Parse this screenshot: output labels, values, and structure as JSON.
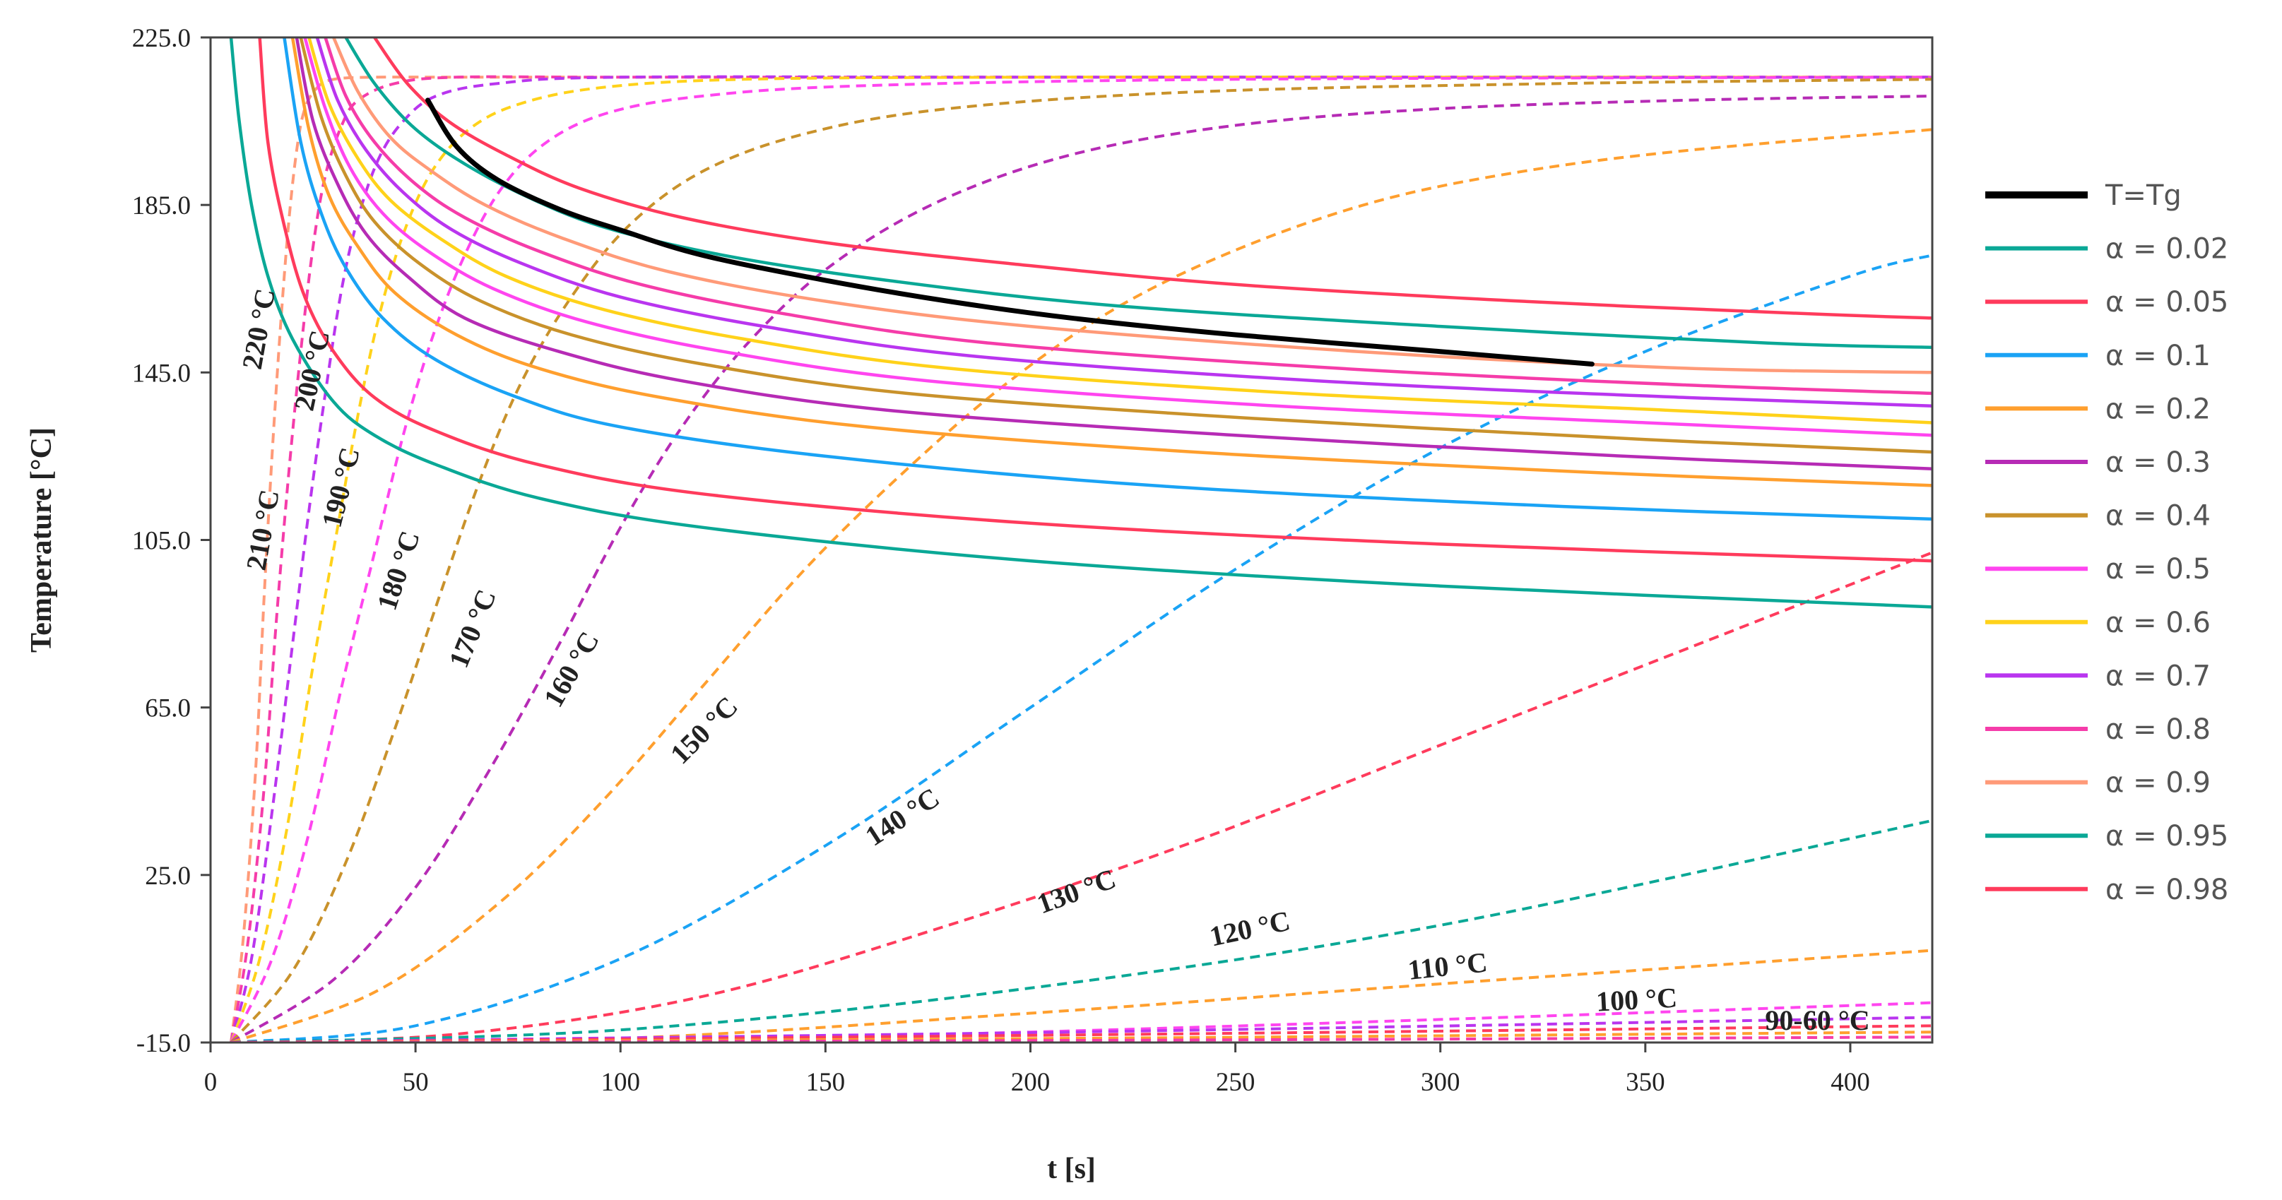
{
  "chart_data": {
    "type": "line",
    "title": "",
    "xlabel": "t [s]",
    "ylabel": "Temperature [°C]",
    "xlim": [
      0,
      420
    ],
    "ylim": [
      -15,
      225
    ],
    "xticks": [
      "0",
      "50",
      "100",
      "150",
      "200",
      "250",
      "300",
      "350",
      "400"
    ],
    "yticks": [
      "-15.0",
      "25.0",
      "65.0",
      "105.0",
      "145.0",
      "185.0",
      "225.0"
    ],
    "grid": false,
    "legend_position": "right",
    "legend": [
      {
        "label": "T=Tg",
        "color": "#000000"
      },
      {
        "label": "α = 0.02",
        "color": "#0aa896"
      },
      {
        "label": "α = 0.05",
        "color": "#ff3b5c"
      },
      {
        "label": "α = 0.1",
        "color": "#1aa3f5"
      },
      {
        "label": "α = 0.2",
        "color": "#ff9f2e"
      },
      {
        "label": "α = 0.3",
        "color": "#b62bb5"
      },
      {
        "label": "α = 0.4",
        "color": "#c9922b"
      },
      {
        "label": "α = 0.5",
        "color": "#ff45ef"
      },
      {
        "label": "α = 0.6",
        "color": "#ffd21a"
      },
      {
        "label": "α = 0.7",
        "color": "#b935ef"
      },
      {
        "label": "α = 0.8",
        "color": "#f53ca9"
      },
      {
        "label": "α = 0.9",
        "color": "#ff9a78"
      },
      {
        "label": "α = 0.95",
        "color": "#0aa896"
      },
      {
        "label": "α = 0.98",
        "color": "#ff3b5c"
      }
    ],
    "tg_curve": {
      "name": "T=Tg",
      "x": [
        53,
        60,
        70,
        85,
        100,
        120,
        150,
        180,
        210,
        250,
        300,
        337
      ],
      "y": [
        210,
        199,
        191,
        184,
        179,
        173,
        167,
        162,
        158,
        154,
        150,
        147
      ]
    },
    "alpha_series": [
      {
        "name": "α = 0.02",
        "x": [
          5,
          7,
          10,
          14,
          20,
          30,
          40,
          55,
          80,
          120,
          200,
          300,
          420
        ],
        "y": [
          225,
          205,
          185,
          168,
          153,
          138,
          130,
          123,
          115,
          108,
          100,
          94,
          89
        ]
      },
      {
        "name": "α = 0.05",
        "x": [
          12,
          14,
          18,
          23,
          30,
          40,
          55,
          80,
          120,
          200,
          300,
          420
        ],
        "y": [
          225,
          200,
          180,
          163,
          150,
          139,
          131,
          123,
          116,
          109,
          104,
          100
        ]
      },
      {
        "name": "α = 0.1",
        "x": [
          18,
          22,
          27,
          33,
          42,
          55,
          75,
          100,
          150,
          230,
          330,
          420
        ],
        "y": [
          225,
          200,
          183,
          170,
          158,
          148,
          139,
          132,
          125,
          118,
          113,
          110
        ]
      },
      {
        "name": "α = 0.2",
        "x": [
          20,
          24,
          29,
          36,
          45,
          60,
          80,
          110,
          160,
          240,
          340,
          420
        ],
        "y": [
          225,
          203,
          187,
          175,
          164,
          154,
          146,
          139,
          132,
          126,
          121,
          118
        ]
      },
      {
        "name": "α = 0.3",
        "x": [
          21,
          25,
          31,
          38,
          48,
          62,
          85,
          115,
          165,
          250,
          345,
          420
        ],
        "y": [
          225,
          205,
          190,
          178,
          168,
          158,
          150,
          143,
          136,
          130,
          125,
          122
        ]
      },
      {
        "name": "α = 0.4",
        "x": [
          22,
          27,
          33,
          40,
          51,
          66,
          88,
          120,
          170,
          255,
          350,
          420
        ],
        "y": [
          225,
          206,
          192,
          181,
          171,
          162,
          154,
          147,
          140,
          134,
          129,
          126
        ]
      },
      {
        "name": "α = 0.5",
        "x": [
          23,
          28,
          34,
          42,
          53,
          69,
          92,
          125,
          175,
          260,
          350,
          420
        ],
        "y": [
          225,
          208,
          194,
          183,
          174,
          165,
          157,
          150,
          143,
          137,
          133,
          130
        ]
      },
      {
        "name": "α = 0.6",
        "x": [
          24,
          29,
          36,
          44,
          56,
          72,
          96,
          130,
          180,
          265,
          355,
          420
        ],
        "y": [
          225,
          209,
          196,
          186,
          177,
          168,
          160,
          153,
          146,
          140,
          136,
          133
        ]
      },
      {
        "name": "α = 0.7",
        "x": [
          26,
          31,
          38,
          47,
          59,
          76,
          100,
          135,
          185,
          270,
          360,
          420
        ],
        "y": [
          225,
          210,
          198,
          188,
          179,
          171,
          163,
          156,
          149,
          143,
          139,
          137
        ]
      },
      {
        "name": "α = 0.8",
        "x": [
          28,
          33,
          40,
          50,
          62,
          80,
          105,
          140,
          190,
          275,
          360,
          420
        ],
        "y": [
          225,
          211,
          200,
          190,
          182,
          174,
          166,
          159,
          152,
          146,
          142,
          140
        ]
      },
      {
        "name": "α = 0.9",
        "x": [
          30,
          36,
          44,
          54,
          67,
          86,
          112,
          150,
          200,
          280,
          360,
          420
        ],
        "y": [
          225,
          212,
          201,
          193,
          185,
          177,
          169,
          162,
          156,
          150,
          146,
          145
        ]
      },
      {
        "name": "α = 0.95",
        "x": [
          33,
          40,
          49,
          60,
          75,
          95,
          125,
          165,
          220,
          300,
          380,
          420
        ],
        "y": [
          225,
          214,
          204,
          196,
          188,
          180,
          173,
          167,
          161,
          156,
          152,
          151
        ]
      },
      {
        "name": "α = 0.98",
        "x": [
          40,
          48,
          58,
          72,
          90,
          115,
          150,
          195,
          250,
          320,
          390,
          420
        ],
        "y": [
          225,
          214,
          205,
          197,
          189,
          182,
          176,
          171,
          166,
          162,
          159,
          158
        ]
      }
    ],
    "isotherm_series": [
      {
        "label": "220 °C",
        "color": "#ff9a78",
        "x": [
          5,
          8,
          11,
          13,
          15,
          17,
          19,
          21,
          23,
          26,
          30,
          40,
          60,
          100,
          200,
          420
        ],
        "y": [
          -15,
          10,
          50,
          90,
          125,
          155,
          180,
          198,
          208,
          213,
          215,
          215.5,
          215.5,
          215.5,
          215.5,
          215.5
        ]
      },
      {
        "label": "210 °C",
        "color": "#f53ca9",
        "x": [
          5,
          9,
          13,
          16,
          19,
          22,
          25,
          28,
          32,
          36,
          45,
          60,
          100,
          200,
          420
        ],
        "y": [
          -15,
          8,
          45,
          85,
          120,
          150,
          175,
          192,
          204,
          210,
          214,
          215.5,
          215.5,
          215.5,
          215.5
        ]
      },
      {
        "label": "200 °C",
        "color": "#b935ef",
        "x": [
          5,
          10,
          15,
          20,
          24,
          28,
          32,
          36,
          41,
          47,
          55,
          70,
          100,
          200,
          420
        ],
        "y": [
          -15,
          5,
          40,
          80,
          112,
          140,
          165,
          182,
          196,
          205,
          211,
          214,
          215.5,
          215.5,
          215.5
        ]
      },
      {
        "label": "190 °C",
        "color": "#ffd21a",
        "x": [
          5,
          12,
          19,
          25,
          31,
          36,
          41,
          47,
          54,
          63,
          75,
          95,
          130,
          200,
          300,
          420
        ],
        "y": [
          -15,
          5,
          38,
          75,
          108,
          135,
          158,
          178,
          193,
          203,
          209,
          213,
          215,
          215.5,
          215.5,
          215.5
        ]
      },
      {
        "label": "180 °C",
        "color": "#ff45ef",
        "x": [
          5,
          15,
          24,
          32,
          40,
          47,
          54,
          62,
          71,
          82,
          97,
          120,
          160,
          250,
          420
        ],
        "y": [
          -15,
          5,
          35,
          70,
          102,
          130,
          153,
          173,
          189,
          200,
          207,
          211,
          213.5,
          215,
          215.5
        ]
      },
      {
        "label": "170 °C",
        "color": "#c9922b",
        "x": [
          5,
          20,
          33,
          45,
          56,
          66,
          76,
          88,
          102,
          120,
          145,
          180,
          240,
          330,
          420
        ],
        "y": [
          -15,
          2,
          28,
          60,
          92,
          120,
          143,
          163,
          180,
          193,
          202,
          208,
          212,
          214,
          215
        ]
      },
      {
        "label": "160 °C",
        "color": "#b62bb5",
        "x": [
          5,
          30,
          50,
          68,
          85,
          100,
          115,
          132,
          152,
          178,
          210,
          250,
          300,
          360,
          420
        ],
        "y": [
          -15,
          0,
          22,
          50,
          80,
          108,
          132,
          153,
          171,
          186,
          197,
          204,
          208,
          210,
          211
        ]
      },
      {
        "label": "150 °C",
        "color": "#ff9f2e",
        "x": [
          5,
          40,
          70,
          95,
          120,
          145,
          170,
          195,
          222,
          252,
          285,
          320,
          360,
          420
        ],
        "y": [
          -15,
          -3,
          18,
          42,
          70,
          98,
          122,
          143,
          161,
          175,
          186,
          193,
          198,
          203
        ]
      },
      {
        "label": "140 °C",
        "color": "#1aa3f5",
        "x": [
          5,
          50,
          100,
          150,
          200,
          250,
          300,
          350,
          400,
          420
        ],
        "y": [
          -15,
          -11,
          5,
          32,
          65,
          98,
          127,
          150,
          168,
          173
        ]
      },
      {
        "label": "130 °C",
        "color": "#ff3b5c",
        "x": [
          5,
          60,
          120,
          180,
          240,
          300,
          360,
          420
        ],
        "y": [
          -15,
          -13,
          -4,
          13,
          33,
          56,
          79,
          102
        ]
      },
      {
        "label": "120 °C",
        "color": "#0aa896",
        "x": [
          5,
          100,
          200,
          300,
          420
        ],
        "y": [
          -15,
          -12,
          -2,
          13,
          38
        ]
      },
      {
        "label": "110 °C",
        "color": "#ff9f2e",
        "x": [
          5,
          100,
          200,
          300,
          420
        ],
        "y": [
          -15,
          -14,
          -8,
          -1,
          7
        ]
      },
      {
        "label": "100 °C",
        "color": "#ff45ef",
        "x": [
          5,
          100,
          200,
          300,
          420
        ],
        "y": [
          -15,
          -14.7,
          -12.5,
          -9.5,
          -5.5
        ]
      },
      {
        "label": "90-60 °C",
        "color": "#b935ef",
        "x": [
          5,
          210,
          420
        ],
        "y": [
          -15,
          -12.5,
          -9
        ]
      },
      {
        "label": "",
        "color": "#ff3b5c",
        "x": [
          5,
          210,
          420
        ],
        "y": [
          -15,
          -13.2,
          -11
        ]
      },
      {
        "label": "",
        "color": "#ff9f2e",
        "x": [
          5,
          210,
          420
        ],
        "y": [
          -15,
          -14,
          -12.5
        ]
      },
      {
        "label": "",
        "color": "#f53ca9",
        "x": [
          5,
          210,
          420
        ],
        "y": [
          -15,
          -14.5,
          -13.7
        ]
      }
    ],
    "curve_labels": [
      {
        "text": "220 °C",
        "x": 14,
        "y": 155,
        "angle": -80
      },
      {
        "text": "210 °C",
        "x": 15,
        "y": 107,
        "angle": -80
      },
      {
        "text": "200 °C",
        "x": 27,
        "y": 145,
        "angle": -78
      },
      {
        "text": "190 °C",
        "x": 34,
        "y": 117,
        "angle": -76
      },
      {
        "text": "180 °C",
        "x": 48,
        "y": 97,
        "angle": -72
      },
      {
        "text": "170 °C",
        "x": 66,
        "y": 83,
        "angle": -68
      },
      {
        "text": "160 °C",
        "x": 90,
        "y": 73,
        "angle": -60
      },
      {
        "text": "150 °C",
        "x": 122,
        "y": 58,
        "angle": -45
      },
      {
        "text": "140 °C",
        "x": 170,
        "y": 37,
        "angle": -33
      },
      {
        "text": "130 °C",
        "x": 212,
        "y": 19,
        "angle": -20
      },
      {
        "text": "120 °C",
        "x": 254,
        "y": 10,
        "angle": -12
      },
      {
        "text": "110 °C",
        "x": 302,
        "y": 1,
        "angle": -6
      },
      {
        "text": "100 °C",
        "x": 348,
        "y": -7,
        "angle": -3
      },
      {
        "text": "90-60 °C",
        "x": 392,
        "y": -12,
        "angle": 0
      }
    ]
  }
}
